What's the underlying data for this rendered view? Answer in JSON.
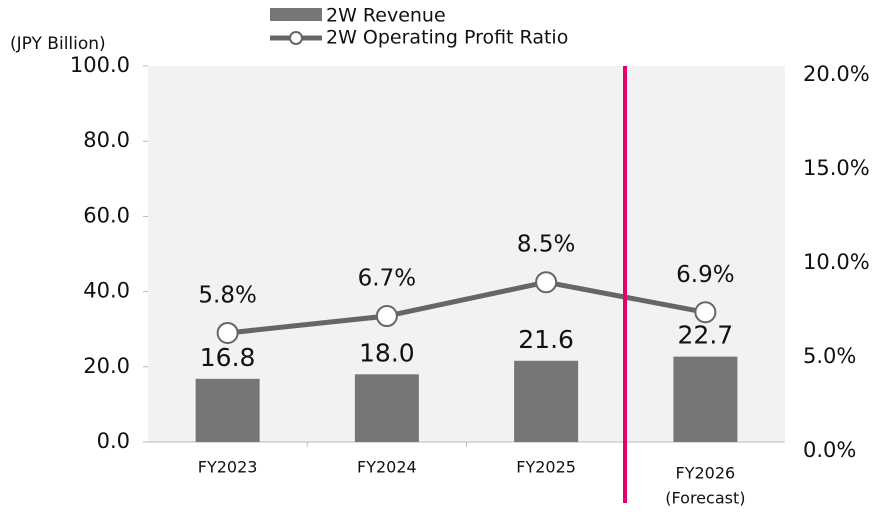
{
  "chart_data": {
    "type": "bar_line",
    "y_axis_title": "(JPY Billion)",
    "categories": [
      "FY2023",
      "FY2024",
      "FY2025",
      "FY2026"
    ],
    "forecast_note": "(Forecast)",
    "series": [
      {
        "name": "2W Revenue",
        "type": "bar",
        "color": "#767676",
        "values": [
          16.8,
          18.0,
          21.6,
          22.7
        ],
        "value_labels": [
          "16.8",
          "18.0",
          "21.6",
          "22.7"
        ]
      },
      {
        "name": "2W Operating Profit Ratio",
        "type": "line",
        "axis": "y2",
        "color": "#666666",
        "values": [
          5.8,
          6.7,
          8.5,
          6.9
        ],
        "value_labels": [
          "5.8%",
          "6.7%",
          "8.5%",
          "6.9%"
        ]
      }
    ],
    "ylim": [
      0,
      100
    ],
    "yticks": [
      {
        "value": 0,
        "label": "0.0"
      },
      {
        "value": 20,
        "label": "20.0"
      },
      {
        "value": 40,
        "label": "40.0"
      },
      {
        "value": 60,
        "label": "60.0"
      },
      {
        "value": 80,
        "label": "80.0"
      },
      {
        "value": 100,
        "label": "100.0"
      }
    ],
    "y2lim": [
      0,
      20
    ],
    "y2ticks": [
      {
        "value": 0,
        "label": "0.0%"
      },
      {
        "value": 5,
        "label": "5.0%"
      },
      {
        "value": 10,
        "label": "10.0%"
      },
      {
        "value": 15,
        "label": "15.0%"
      },
      {
        "value": 20,
        "label": "20.0%"
      }
    ],
    "divider_color": "#e0006e"
  }
}
